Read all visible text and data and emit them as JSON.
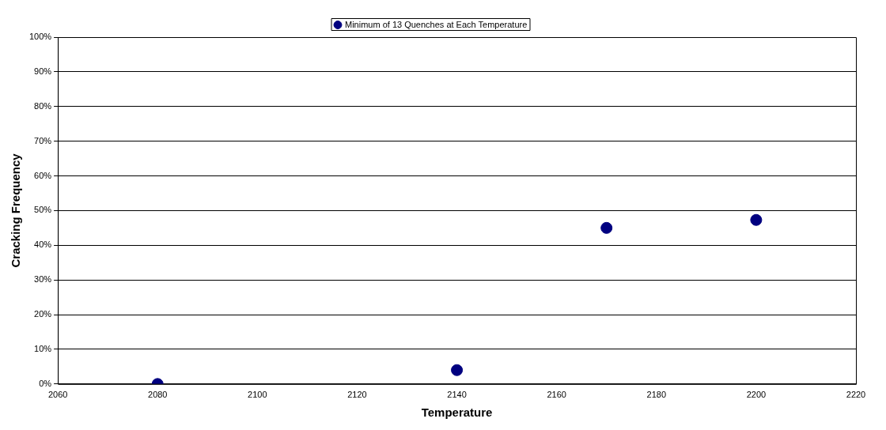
{
  "chart_data": {
    "type": "scatter",
    "xlabel": "Temperature",
    "ylabel": "Cracking Frequency",
    "x": [
      2080,
      2140,
      2170,
      2200
    ],
    "series": [
      {
        "name": "Minimum of 13 Quenches at Each Temperature",
        "color": "#000080",
        "values": [
          0,
          4,
          45,
          47.3
        ]
      }
    ],
    "xlim": [
      2060,
      2220
    ],
    "xticks": [
      2060,
      2080,
      2100,
      2120,
      2140,
      2160,
      2180,
      2200,
      2220
    ],
    "ylim": [
      0,
      100
    ],
    "yticks": [
      {
        "value": 0,
        "label": "0%"
      },
      {
        "value": 10,
        "label": "10%"
      },
      {
        "value": 20,
        "label": "20%"
      },
      {
        "value": 30,
        "label": "30%"
      },
      {
        "value": 40,
        "label": "40%"
      },
      {
        "value": 50,
        "label": "50%"
      },
      {
        "value": 60,
        "label": "60%"
      },
      {
        "value": 70,
        "label": "70%"
      },
      {
        "value": 80,
        "label": "80%"
      },
      {
        "value": 90,
        "label": "90%"
      },
      {
        "value": 100,
        "label": "100%"
      }
    ],
    "grid": "y",
    "legend": "top",
    "marker": "circle"
  }
}
